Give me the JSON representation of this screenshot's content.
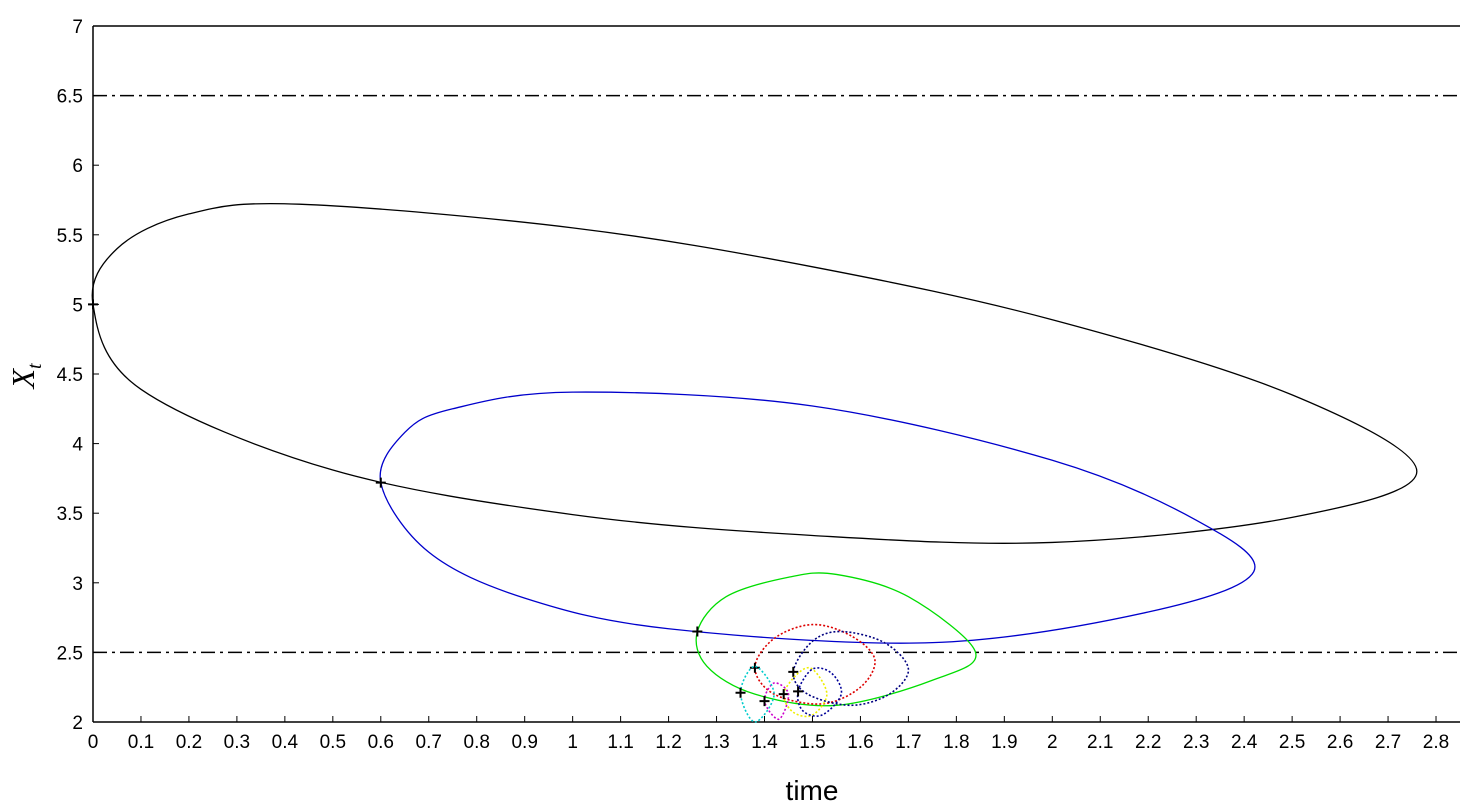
{
  "chart_data": {
    "type": "line",
    "xlabel": "time",
    "ylabel": "X",
    "ylabel_subscript": "t",
    "xlim": [
      0,
      2.85
    ],
    "ylim": [
      2,
      7
    ],
    "xticks": [
      0,
      0.1,
      0.2,
      0.3,
      0.4,
      0.5,
      0.6,
      0.7,
      0.8,
      0.9,
      1,
      1.1,
      1.2,
      1.3,
      1.4,
      1.5,
      1.6,
      1.7,
      1.8,
      1.9,
      2,
      2.1,
      2.2,
      2.3,
      2.4,
      2.5,
      2.6,
      2.7,
      2.8
    ],
    "yticks": [
      2,
      2.5,
      3,
      3.5,
      4,
      4.5,
      5,
      5.5,
      6,
      6.5,
      7
    ],
    "hlines": [
      6.5,
      2.5
    ],
    "series": [
      {
        "color": "#000000",
        "dash": false,
        "x": [
          0,
          0.05,
          0.2,
          0.43,
          1.0,
          1.5,
          2.0,
          2.5,
          2.76,
          2.5,
          2.0,
          1.5,
          1.0,
          0.5,
          0.1
        ],
        "y": [
          5,
          5.4,
          5.65,
          5.72,
          5.55,
          5.27,
          4.89,
          4.35,
          3.8,
          3.47,
          3.29,
          3.34,
          3.49,
          3.81,
          4.39
        ]
      },
      {
        "color": "#0000cc",
        "dash": false,
        "x": [
          0.6,
          0.65,
          0.75,
          1.0,
          1.5,
          2.0,
          2.3,
          2.42,
          2.2,
          1.75,
          1.2,
          0.9,
          0.7
        ],
        "y": [
          3.72,
          4.08,
          4.25,
          4.37,
          4.27,
          3.88,
          3.45,
          3.08,
          2.79,
          2.57,
          2.67,
          2.89,
          3.22
        ]
      },
      {
        "color": "#00dd00",
        "dash": false,
        "x": [
          1.26,
          1.32,
          1.45,
          1.55,
          1.7,
          1.84,
          1.75,
          1.55,
          1.38,
          1.28
        ],
        "y": [
          2.65,
          2.9,
          3.04,
          3.06,
          2.9,
          2.5,
          2.3,
          2.12,
          2.2,
          2.4
        ]
      },
      {
        "color": "#dd0000",
        "dash": true,
        "x": [
          1.38,
          1.42,
          1.5,
          1.58,
          1.63,
          1.6,
          1.52,
          1.42
        ],
        "y": [
          2.39,
          2.6,
          2.7,
          2.62,
          2.45,
          2.25,
          2.13,
          2.2
        ]
      },
      {
        "color": "#000080",
        "dash": true,
        "x": [
          1.46,
          1.5,
          1.56,
          1.65,
          1.7,
          1.66,
          1.58,
          1.49
        ],
        "y": [
          2.36,
          2.58,
          2.65,
          2.57,
          2.38,
          2.2,
          2.12,
          2.2
        ]
      },
      {
        "color": "#eeee00",
        "dash": true,
        "x": [
          1.44,
          1.47,
          1.5,
          1.53,
          1.5,
          1.46
        ],
        "y": [
          2.2,
          2.35,
          2.38,
          2.2,
          2.05,
          2.07
        ]
      },
      {
        "color": "#000099",
        "dash": true,
        "x": [
          1.47,
          1.5,
          1.54,
          1.56,
          1.52,
          1.48
        ],
        "y": [
          2.22,
          2.38,
          2.35,
          2.2,
          2.05,
          2.08
        ]
      },
      {
        "color": "#cc00cc",
        "dash": true,
        "x": [
          1.4,
          1.42,
          1.45,
          1.43
        ],
        "y": [
          2.15,
          2.28,
          2.2,
          2.02
        ]
      },
      {
        "color": "#00cccc",
        "dash": true,
        "x": [
          1.35,
          1.38,
          1.42,
          1.38
        ],
        "y": [
          2.21,
          2.4,
          2.2,
          2.0
        ]
      }
    ]
  }
}
